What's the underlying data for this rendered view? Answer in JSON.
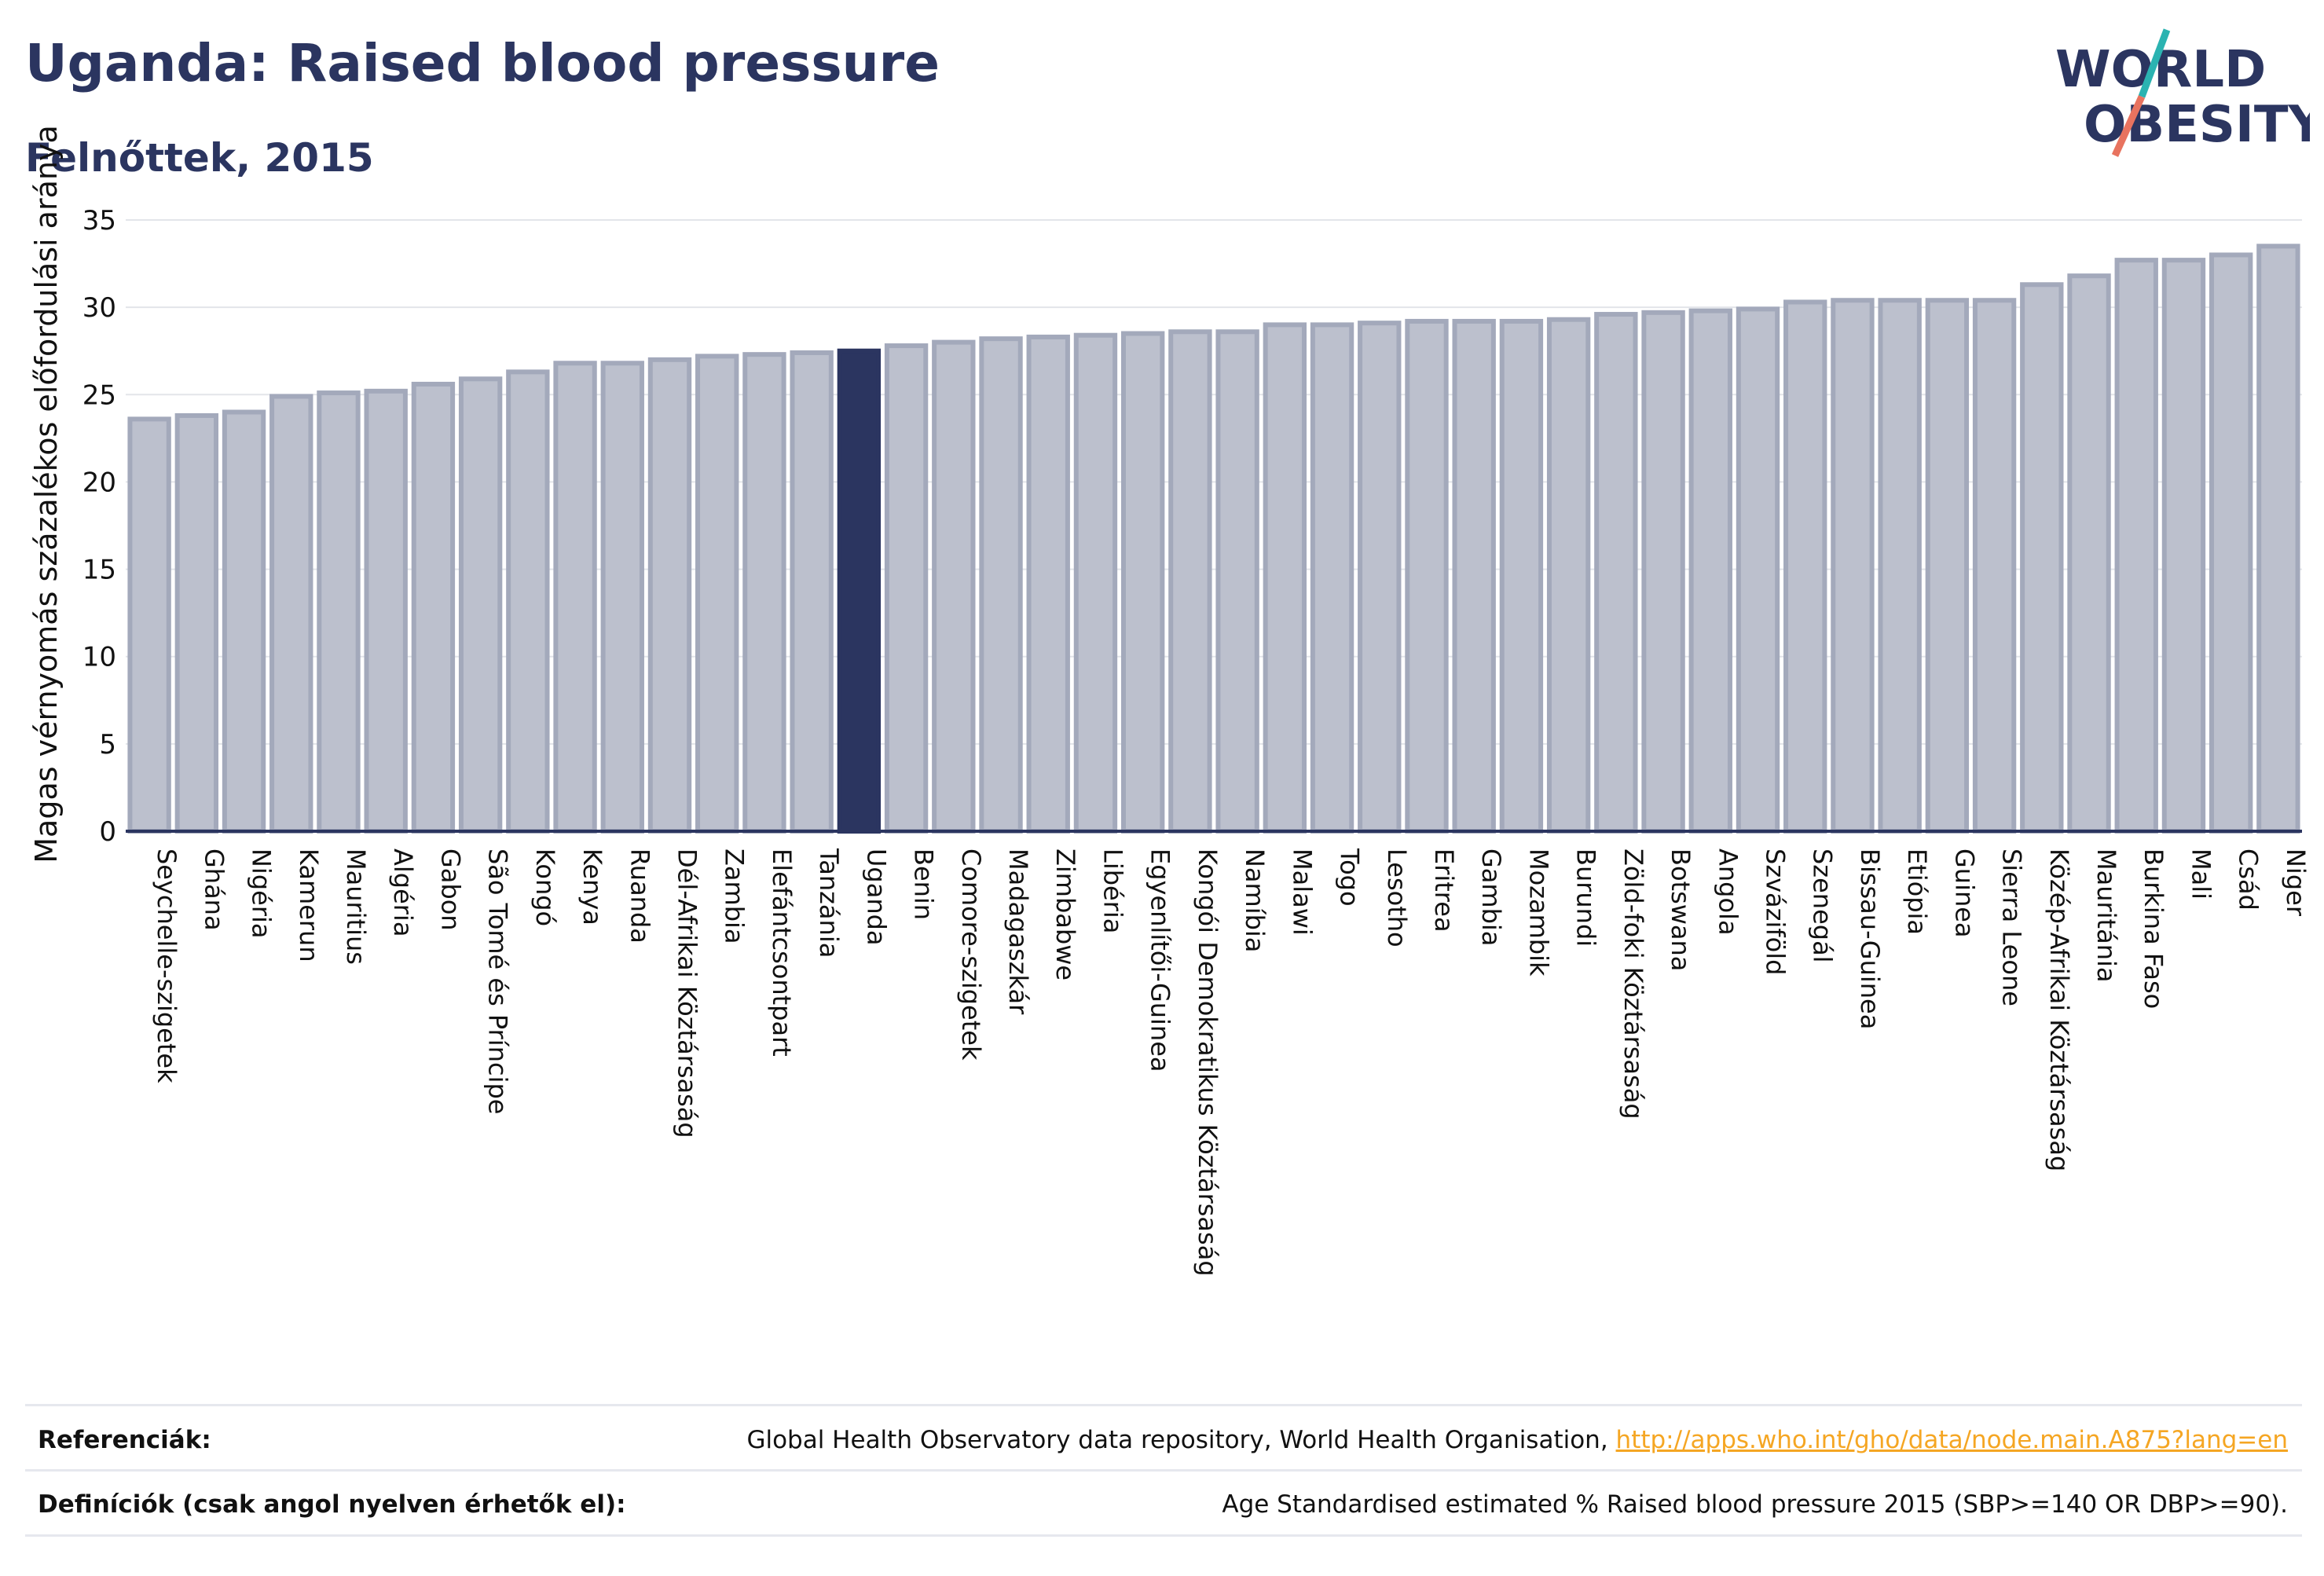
{
  "header": {
    "title": "Uganda: Raised blood pressure",
    "subtitle": "Felnőttek, 2015"
  },
  "logo": {
    "line1": "WORLD",
    "line2": "OBESITY"
  },
  "colors": {
    "bar_fill": "#bcc0cd",
    "bar_stroke": "#a3a9bb",
    "highlight": "#2b3560",
    "grid": "#e3e5ea",
    "axis": "#2b3560",
    "logo_teal": "#2bb3b1",
    "logo_coral": "#e8735f"
  },
  "chart_data": {
    "type": "bar",
    "ylabel": "Magas vérnyomás százalékos előfordulási aránya",
    "ylim": [
      0,
      35
    ],
    "yticks": [
      0,
      5,
      10,
      15,
      20,
      25,
      30,
      35
    ],
    "grid": true,
    "highlight": "Uganda",
    "categories": [
      "Seychelle-szigetek",
      "Ghána",
      "Nigéria",
      "Kamerun",
      "Mauritius",
      "Algéria",
      "Gabon",
      "São Tomé és Príncipe",
      "Kongó",
      "Kenya",
      "Ruanda",
      "Dél-Afrikai Köztársaság",
      "Zambia",
      "Elefántcsontpart",
      "Tanzánia",
      "Uganda",
      "Benin",
      "Comore-szigetek",
      "Madagaszkár",
      "Zimbabwe",
      "Libéria",
      "Egyenlítői-Guinea",
      "Kongói Demokratikus Köztársaság",
      "Namíbia",
      "Malawi",
      "Togo",
      "Lesotho",
      "Eritrea",
      "Gambia",
      "Mozambik",
      "Burundi",
      "Zöld-foki Köztársaság",
      "Botswana",
      "Angola",
      "Szváziföld",
      "Szenegál",
      "Bissau-Guinea",
      "Etiópia",
      "Guinea",
      "Sierra Leone",
      "Közép-Afrikai Köztársaság",
      "Mauritánia",
      "Burkina Faso",
      "Mali",
      "Csád",
      "Niger"
    ],
    "values": [
      23.6,
      23.8,
      24.0,
      24.9,
      25.1,
      25.2,
      25.6,
      25.9,
      26.3,
      26.8,
      26.8,
      27.0,
      27.2,
      27.3,
      27.4,
      27.5,
      27.8,
      28.0,
      28.2,
      28.3,
      28.4,
      28.5,
      28.6,
      28.6,
      29.0,
      29.0,
      29.1,
      29.2,
      29.2,
      29.2,
      29.3,
      29.6,
      29.7,
      29.8,
      29.9,
      30.3,
      30.4,
      30.4,
      30.4,
      30.4,
      31.3,
      31.8,
      32.7,
      32.7,
      33.0,
      33.5
    ]
  },
  "footer": {
    "ref_label": "Referenciák:",
    "ref_text": "Global Health Observatory data repository, World Health Organisation, ",
    "ref_link": "http://apps.who.int/gho/data/node.main.A875?lang=en",
    "def_label": "Definíciók (csak angol nyelven érhetők el):",
    "def_text": "Age Standardised estimated % Raised blood pressure 2015 (SBP>=140 OR DBP>=90)."
  }
}
